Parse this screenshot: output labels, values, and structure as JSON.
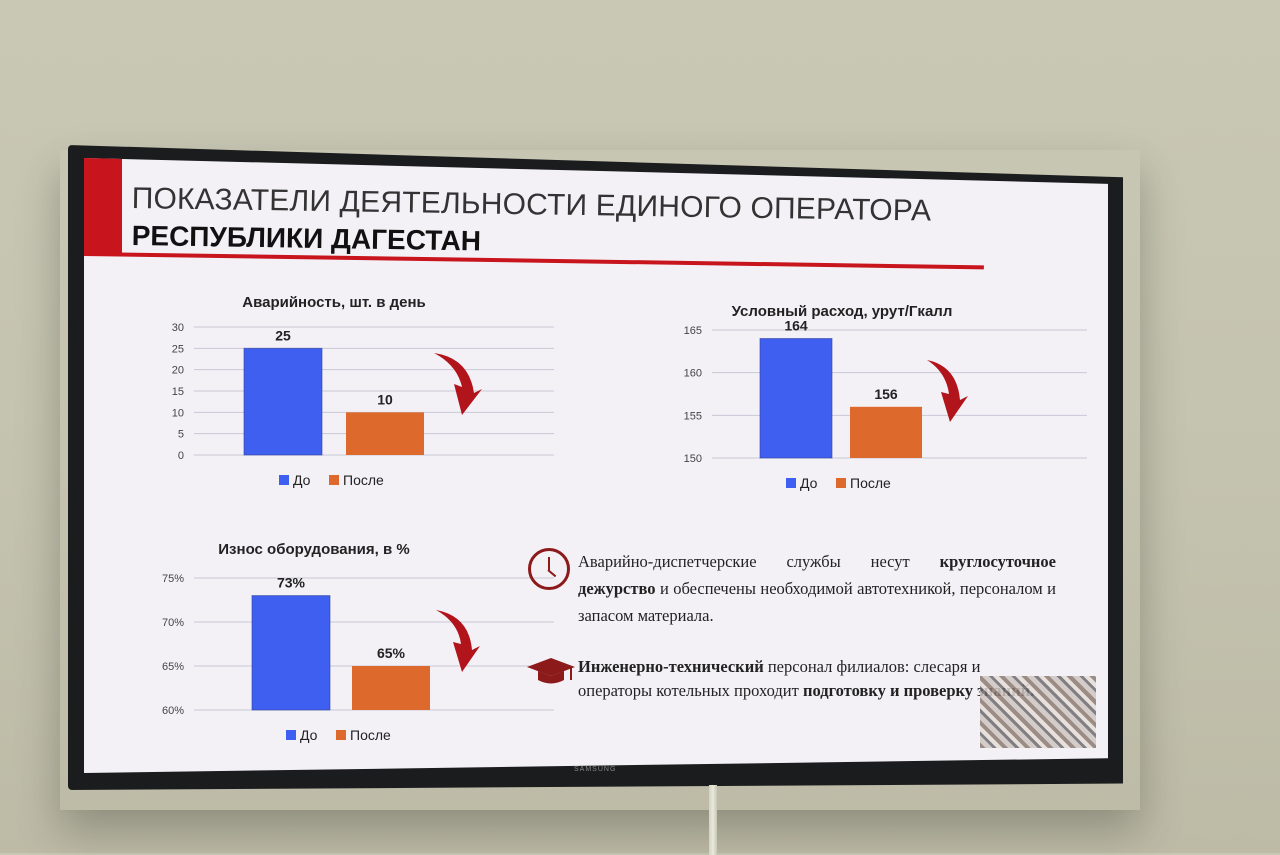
{
  "slide": {
    "title_line1": "ПОКАЗАТЕЛИ ДЕЯТЕЛЬНОСТИ ЕДИНОГО ОПЕРАТОРА",
    "title_line2": "РЕСПУБЛИКИ ДАГЕСТАН",
    "accent_color": "#c8141c",
    "tv_brand": "SAMSUNG"
  },
  "legend": {
    "before": "До",
    "after": "После"
  },
  "colors": {
    "before": "#3f5ff0",
    "after": "#dd6a2c",
    "arrow": "#b2141c"
  },
  "chart_data": [
    {
      "type": "bar",
      "title": "Аварийность, шт. в день",
      "categories": [
        "До",
        "После"
      ],
      "values": [
        25,
        10
      ],
      "data_labels": [
        "25",
        "10"
      ],
      "yticks": [
        "30",
        "25",
        "20",
        "15",
        "10",
        "5",
        "0"
      ],
      "ylim": [
        0,
        30
      ]
    },
    {
      "type": "bar",
      "title": "Условный расход, урут/Гкалл",
      "categories": [
        "До",
        "После"
      ],
      "values": [
        164,
        156
      ],
      "data_labels": [
        "164",
        "156"
      ],
      "yticks": [
        "165",
        "160",
        "155",
        "150"
      ],
      "ylim": [
        150,
        165
      ]
    },
    {
      "type": "bar",
      "title": "Износ оборудования, в %",
      "categories": [
        "До",
        "После"
      ],
      "values": [
        73,
        65
      ],
      "data_labels": [
        "73%",
        "65%"
      ],
      "yticks": [
        "75%",
        "70%",
        "65%",
        "60%"
      ],
      "ylim": [
        60,
        75
      ]
    }
  ],
  "info": {
    "block1": {
      "icon": "clock-icon",
      "text_a": "Аварийно-диспетчерские службы несут ",
      "bold_a": "круглосуточное дежурство",
      "text_b": " и обеспечены необходимой автотехникой, персоналом и запасом материала."
    },
    "block2": {
      "icon": "graduation-cap-icon",
      "bold_a": "Инженерно-технический",
      "text_a": " персонал филиалов: слесаря и операторы котельных проходит ",
      "bold_b": "подготовку и проверку знаний."
    }
  }
}
